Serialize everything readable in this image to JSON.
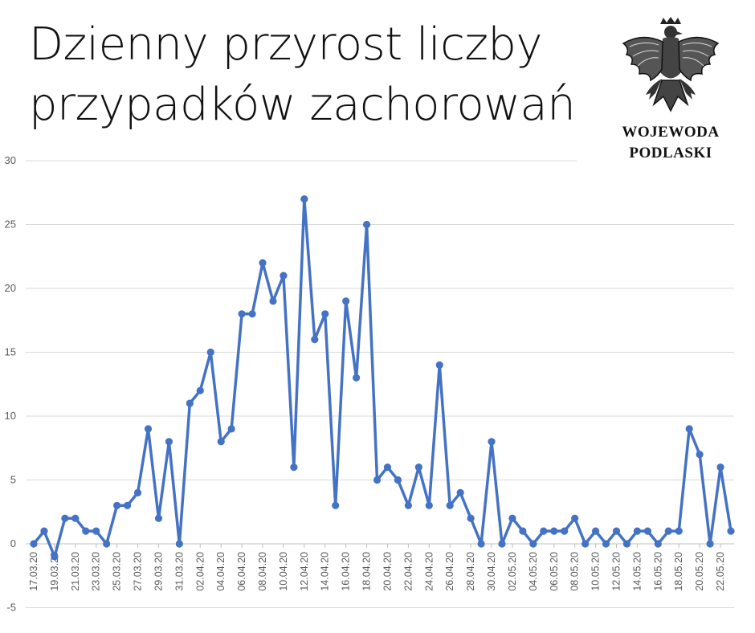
{
  "header": {
    "title_line1": "Dzienny przyrost liczby",
    "title_line2": "przypadków zachorowań",
    "org_line1": "WOJEWODA",
    "org_line2": "PODLASKI",
    "emblem_icon": "eagle-emblem-icon"
  },
  "chart_data": {
    "type": "line",
    "title": "Dzienny przyrost liczby przypadków zachorowań",
    "xlabel": "",
    "ylabel": "",
    "ylim": [
      -5,
      30
    ],
    "yticks": [
      -5,
      0,
      5,
      10,
      15,
      20,
      25,
      30
    ],
    "grid": true,
    "line_color": "#4472c4",
    "x": [
      "17.03.20",
      "18.03.20",
      "19.03.20",
      "20.03.20",
      "21.03.20",
      "22.03.20",
      "23.03.20",
      "24.03.20",
      "25.03.20",
      "26.03.20",
      "27.03.20",
      "28.03.20",
      "29.03.20",
      "30.03.20",
      "31.03.20",
      "01.04.20",
      "02.04.20",
      "03.04.20",
      "04.04.20",
      "05.04.20",
      "06.04.20",
      "07.04.20",
      "08.04.20",
      "09.04.20",
      "10.04.20",
      "11.04.20",
      "12.04.20",
      "13.04.20",
      "14.04.20",
      "15.04.20",
      "16.04.20",
      "17.04.20",
      "18.04.20",
      "19.04.20",
      "20.04.20",
      "21.04.20",
      "22.04.20",
      "23.04.20",
      "24.04.20",
      "25.04.20",
      "26.04.20",
      "27.04.20",
      "28.04.20",
      "29.04.20",
      "30.04.20",
      "01.05.20",
      "02.05.20",
      "03.05.20",
      "04.05.20",
      "05.05.20",
      "06.05.20",
      "07.05.20",
      "08.05.20",
      "09.05.20",
      "10.05.20",
      "11.05.20",
      "12.05.20",
      "13.05.20",
      "14.05.20",
      "15.05.20",
      "16.05.20",
      "17.05.20",
      "18.05.20",
      "19.05.20",
      "20.05.20",
      "21.05.20",
      "22.05.20",
      "23.05.20"
    ],
    "x_tick_labels": [
      "17.03.20",
      "19.03.20",
      "21.03.20",
      "23.03.20",
      "25.03.20",
      "27.03.20",
      "29.03.20",
      "31.03.20",
      "02.04.20",
      "04.04.20",
      "06.04.20",
      "08.04.20",
      "10.04.20",
      "12.04.20",
      "14.04.20",
      "16.04.20",
      "18.04.20",
      "20.04.20",
      "22.04.20",
      "24.04.20",
      "26.04.20",
      "28.04.20",
      "30.04.20",
      "02.05.20",
      "04.05.20",
      "06.05.20",
      "08.05.20",
      "10.05.20",
      "12.05.20",
      "14.05.20",
      "16.05.20",
      "18.05.20",
      "20.05.20",
      "22.05.20"
    ],
    "series": [
      {
        "values": [
          0,
          1,
          -1,
          2,
          2,
          1,
          1,
          0,
          3,
          3,
          4,
          9,
          2,
          8,
          0,
          11,
          12,
          15,
          8,
          9,
          18,
          18,
          22,
          19,
          21,
          6,
          27,
          16,
          18,
          3,
          19,
          13,
          25,
          5,
          6,
          5,
          3,
          6,
          3,
          14,
          3,
          4,
          2,
          0,
          8,
          0,
          2,
          1,
          0,
          1,
          1,
          1,
          2,
          0,
          1,
          0,
          1,
          0,
          1,
          1,
          0,
          1,
          1,
          9,
          7,
          0,
          6,
          1
        ]
      }
    ]
  }
}
